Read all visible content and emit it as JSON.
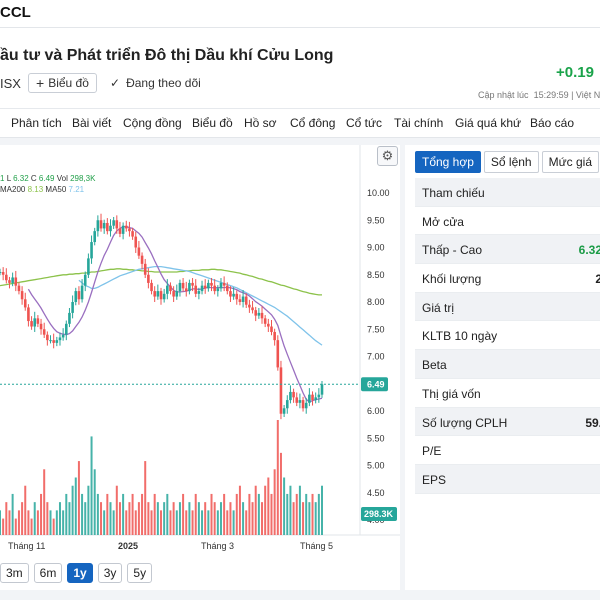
{
  "header": {
    "ticker": "CCL",
    "company": "ầu tư và Phát triển Đô thị Dầu khí Cửu Long",
    "exchange": "ISX",
    "chart_button": "Biểu đồ",
    "follow_label": "Đang theo dõi",
    "change": "+0.19",
    "updated_label": "Cập nhật lúc",
    "updated_time": "15:29:59 | Việt N"
  },
  "nav": {
    "tabs": [
      "Phân tích",
      "Bài viết",
      "Cộng đồng",
      "Biểu đồ",
      "Hồ sơ",
      "Cổ đông",
      "Cổ tức",
      "Tài chính",
      "Giá quá khứ",
      "Báo cáo"
    ]
  },
  "legend": {
    "l_label": "L",
    "l_value": "6.32",
    "c_label": "C",
    "c_value": "6.49",
    "vol_label": "Vol",
    "vol_value": "298,3K",
    "ma200_label": "MA200",
    "ma200_value": "8.13",
    "ma50_label": "MA50",
    "ma50_value": "7.21",
    "open_fragment": "1"
  },
  "periods": [
    "3m",
    "6m",
    "1y",
    "3y",
    "5y"
  ],
  "active_period": "1y",
  "side": {
    "tabs": [
      "Tổng hợp",
      "Sổ lệnh",
      "Mức giá",
      "T"
    ],
    "active_tab": "Tổng hợp",
    "rows": [
      {
        "label": "Tham chiếu",
        "value": ""
      },
      {
        "label": "Mở cửa",
        "value": ""
      },
      {
        "label": "Thấp - Cao",
        "value": "6.32",
        "color": "green"
      },
      {
        "label": "Khối lượng",
        "value": "2",
        "color": "dark"
      },
      {
        "label": "Giá trị",
        "value": ""
      },
      {
        "label": "KLTB 10 ngày",
        "value": ""
      },
      {
        "label": "Beta",
        "value": ""
      },
      {
        "label": "Thị giá vốn",
        "value": ""
      },
      {
        "label": "Số lượng CPLH",
        "value": "59.",
        "color": "dark"
      },
      {
        "label": "P/E",
        "value": ""
      },
      {
        "label": "EPS",
        "value": ""
      }
    ]
  },
  "colors": {
    "up": "#26a69a",
    "down": "#ef5350",
    "ma200": "#8cc24a",
    "ma50": "#7fc3ea",
    "accent": "#1565c0"
  },
  "chart_data": {
    "type": "candlestick",
    "y_ticks": [
      "10.00",
      "9.50",
      "9.00",
      "8.50",
      "8.00",
      "7.50",
      "7.00",
      "6.50",
      "6.00",
      "5.50",
      "5.00",
      "4.50",
      "4.00"
    ],
    "x_ticks": [
      "Tháng 11",
      "2025",
      "Tháng 3",
      "Tháng 5"
    ],
    "last_price": "6.49",
    "last_volume": "298.3K",
    "ylim": [
      4.0,
      10.0
    ],
    "close": [
      8.55,
      8.5,
      8.4,
      8.35,
      8.45,
      8.3,
      8.2,
      8.05,
      7.9,
      7.65,
      7.55,
      7.7,
      7.6,
      7.5,
      7.4,
      7.3,
      7.3,
      7.25,
      7.3,
      7.35,
      7.4,
      7.6,
      7.8,
      8.0,
      8.2,
      8.05,
      8.3,
      8.5,
      8.8,
      9.1,
      9.3,
      9.5,
      9.35,
      9.45,
      9.3,
      9.4,
      9.5,
      9.35,
      9.25,
      9.4,
      9.35,
      9.3,
      9.2,
      9.0,
      8.85,
      8.7,
      8.5,
      8.35,
      8.2,
      8.1,
      8.2,
      8.05,
      8.15,
      8.3,
      8.2,
      8.1,
      8.2,
      8.35,
      8.25,
      8.2,
      8.35,
      8.3,
      8.15,
      8.2,
      8.3,
      8.25,
      8.35,
      8.3,
      8.2,
      8.25,
      8.35,
      8.3,
      8.2,
      8.1,
      8.15,
      8.05,
      8.0,
      8.1,
      7.95,
      7.9,
      7.85,
      7.75,
      7.8,
      7.7,
      7.6,
      7.55,
      7.45,
      7.3,
      6.8,
      5.95,
      6.05,
      6.2,
      6.35,
      6.25,
      6.15,
      6.2,
      6.05,
      6.15,
      6.3,
      6.2,
      6.25,
      6.3,
      6.49
    ],
    "volume_scale": "relative",
    "ma200": [
      8.3,
      8.31,
      8.32,
      8.33,
      8.34,
      8.35,
      8.36,
      8.37,
      8.38,
      8.39,
      8.4,
      8.41,
      8.42,
      8.43,
      8.44,
      8.45,
      8.46,
      8.47,
      8.48,
      8.49,
      8.5,
      8.5,
      8.51,
      8.51,
      8.52,
      8.52,
      8.53,
      8.53,
      8.54,
      8.55,
      8.55,
      8.56,
      8.57,
      8.58,
      8.59,
      8.6,
      8.6,
      8.61,
      8.61,
      8.6,
      8.6,
      8.59,
      8.59,
      8.58,
      8.58,
      8.57,
      8.57,
      8.56,
      8.56,
      8.55,
      8.55,
      8.55,
      8.55,
      8.55,
      8.55,
      8.55,
      8.55,
      8.56,
      8.56,
      8.57,
      8.57,
      8.58,
      8.58,
      8.58,
      8.59,
      8.59,
      8.59,
      8.6,
      8.6,
      8.59,
      8.59,
      8.58,
      8.57,
      8.56,
      8.55,
      8.54,
      8.53,
      8.51,
      8.5,
      8.48,
      8.47,
      8.45,
      8.43,
      8.42,
      8.4,
      8.38,
      8.37,
      8.35,
      8.33,
      8.31,
      8.3,
      8.28,
      8.26,
      8.24,
      8.23,
      8.21,
      8.19,
      8.18,
      8.16,
      8.15,
      8.14,
      8.13,
      8.13
    ],
    "ma50": [
      null,
      null,
      null,
      null,
      null,
      null,
      null,
      null,
      null,
      null,
      null,
      null,
      null,
      null,
      null,
      null,
      null,
      null,
      null,
      null,
      null,
      null,
      null,
      null,
      null,
      8.4,
      8.35,
      8.3,
      8.28,
      8.25,
      8.25,
      8.27,
      8.3,
      8.33,
      8.36,
      8.39,
      8.42,
      8.45,
      8.48,
      8.5,
      8.52,
      8.54,
      8.56,
      8.58,
      8.6,
      8.61,
      8.62,
      8.63,
      8.64,
      8.65,
      8.65,
      8.65,
      8.64,
      8.63,
      8.62,
      8.61,
      8.6,
      8.59,
      8.58,
      8.57,
      8.56,
      8.54,
      8.52,
      8.5,
      8.48,
      8.46,
      8.44,
      8.42,
      8.4,
      8.38,
      8.36,
      8.34,
      8.32,
      8.3,
      8.28,
      8.26,
      8.23,
      8.2,
      8.17,
      8.14,
      8.11,
      8.08,
      8.05,
      8.02,
      7.99,
      7.96,
      7.93,
      7.9,
      7.86,
      7.82,
      7.78,
      7.74,
      7.69,
      7.64,
      7.59,
      7.54,
      7.49,
      7.44,
      7.39,
      7.34,
      7.29,
      7.25,
      7.21
    ]
  }
}
